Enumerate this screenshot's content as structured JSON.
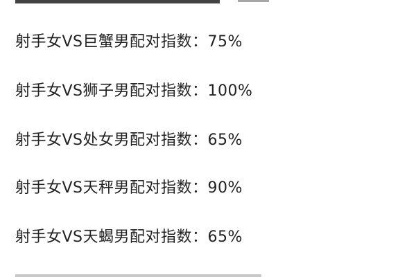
{
  "lines": [
    {
      "text": "射手女VS巨蟹男配对指数：75%"
    },
    {
      "text": "射手女VS狮子男配对指数：100%"
    },
    {
      "text": "射手女VS处女男配对指数：65%"
    },
    {
      "text": "射手女VS天秤男配对指数：90%"
    },
    {
      "text": "射手女VS天蝎男配对指数：65%"
    }
  ]
}
